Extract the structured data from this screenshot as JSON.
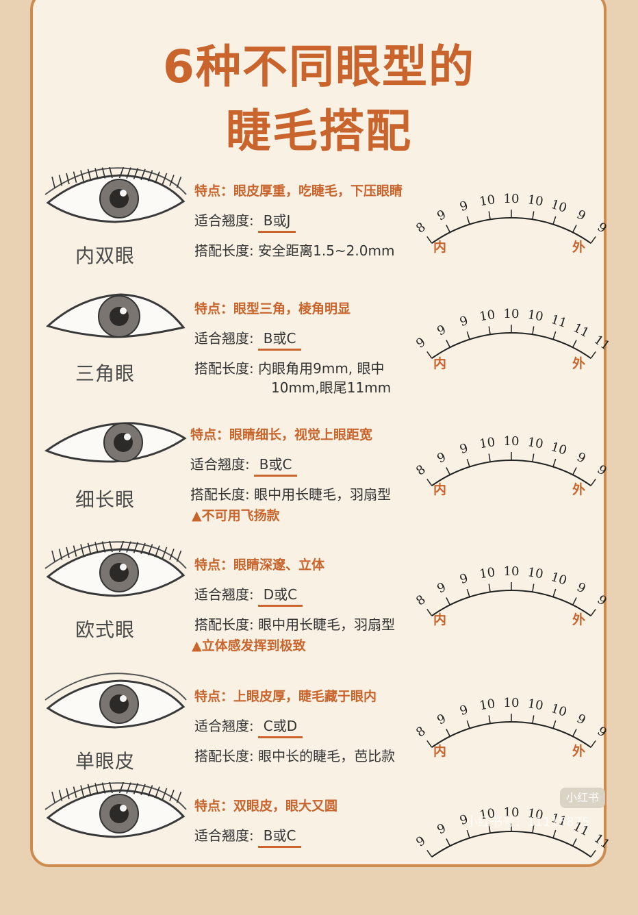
{
  "title": {
    "line1": "6种不同眼型的",
    "line2": "睫毛搭配"
  },
  "labels": {
    "curl": "适合翘度:",
    "length": "搭配长度:",
    "inner": "内",
    "outer": "外"
  },
  "eyes": [
    {
      "name": "内双眼",
      "feature": "特点：眼皮厚重，吃睫毛，下压眼睛",
      "curl": "B或J",
      "length": "安全距离1.5~2.0mm",
      "length2": "",
      "note": "",
      "scale": [
        "8",
        "9",
        "9",
        "10",
        "10",
        "10",
        "10",
        "9",
        "9"
      ]
    },
    {
      "name": "三角眼",
      "feature": "特点：眼型三角，棱角明显",
      "curl": "B或C",
      "length": "内眼角用9mm, 眼中",
      "length2": "10mm,眼尾11mm",
      "note": "",
      "scale": [
        "9",
        "9",
        "9",
        "10",
        "10",
        "10",
        "11",
        "11",
        "11"
      ]
    },
    {
      "name": "细长眼",
      "feature": "特点：眼睛细长，视觉上眼距宽",
      "curl": "B或C",
      "length": "眼中用长睫毛，羽扇型",
      "length2": "",
      "note": "▲不可用飞扬款",
      "scale": [
        "8",
        "9",
        "9",
        "10",
        "10",
        "10",
        "10",
        "9",
        "9"
      ]
    },
    {
      "name": "欧式眼",
      "feature": "特点：眼睛深邃、立体",
      "curl": "D或C",
      "length": "眼中用长睫毛，羽扇型",
      "length2": "",
      "note": "▲立体感发挥到极致",
      "scale": [
        "8",
        "9",
        "9",
        "10",
        "10",
        "10",
        "10",
        "9",
        "9"
      ]
    },
    {
      "name": "单眼皮",
      "feature": "特点：上眼皮厚，睫毛藏于眼内",
      "curl": "C或D",
      "length": "眼中长的睫毛，芭比款",
      "length2": "",
      "note": "",
      "scale": [
        "8",
        "9",
        "9",
        "10",
        "10",
        "10",
        "10",
        "9",
        "9"
      ]
    },
    {
      "name": "",
      "feature": "特点：双眼皮，眼大又圆",
      "curl": "B或C",
      "length": "",
      "length2": "",
      "note": "",
      "scale": [
        "9",
        "9",
        "9",
        "10",
        "10",
        "10",
        "11",
        "11",
        "11"
      ]
    }
  ],
  "watermark": {
    "logo": "小红书",
    "id": "小红书号：11115875"
  },
  "colors": {
    "accent": "#c8642c",
    "background": "#f8f1e4",
    "border": "#cf8a4d"
  }
}
